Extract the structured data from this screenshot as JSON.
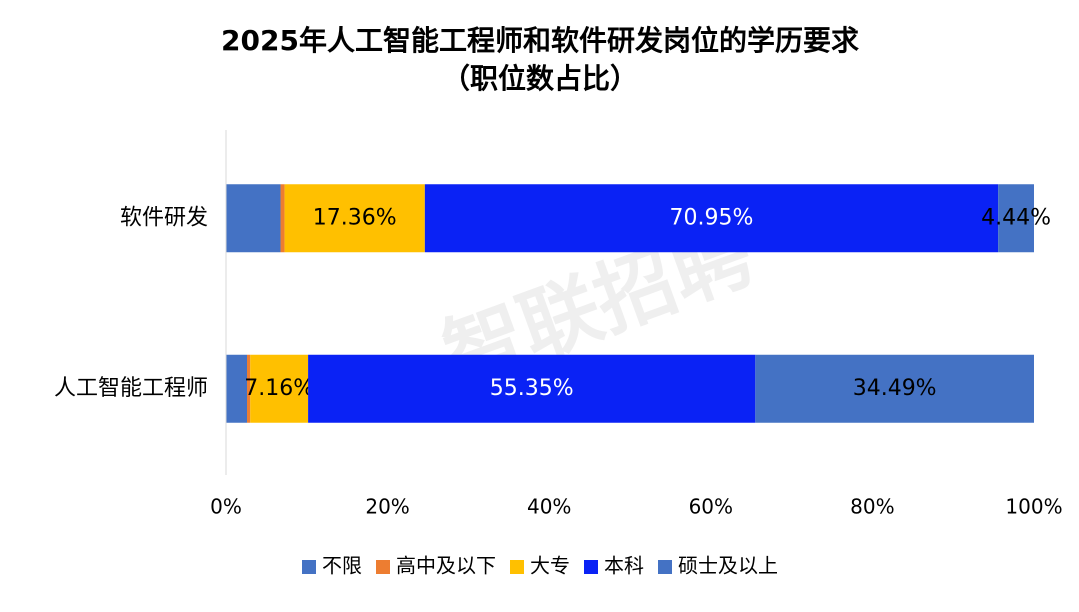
{
  "chart_data": {
    "type": "stacked-bar-horizontal",
    "title": "2025年人工智能工程师和软件研发岗位的学历要求",
    "subtitle": "（职位数占比）",
    "watermark": "智联招聘",
    "categories": [
      "软件研发",
      "人工智能工程师"
    ],
    "series": [
      {
        "name": "不限",
        "color": "#4472c4",
        "values": [
          6.75,
          2.6
        ],
        "value_labels": [
          null,
          null
        ]
      },
      {
        "name": "高中及以下",
        "color": "#ed7d31",
        "values": [
          0.5,
          0.4
        ],
        "value_labels": [
          null,
          null
        ]
      },
      {
        "name": "大专",
        "color": "#ffc000",
        "values": [
          17.36,
          7.16
        ],
        "value_labels": [
          "17.36%",
          "7.16%"
        ]
      },
      {
        "name": "本科",
        "color": "#0a22f5",
        "values": [
          70.95,
          55.35
        ],
        "value_labels": [
          "70.95%",
          "55.35%"
        ]
      },
      {
        "name": "硕士及以上",
        "color": "#4472c4",
        "values": [
          4.44,
          34.49
        ],
        "value_labels": [
          "4.44%",
          "34.49%"
        ]
      }
    ],
    "xlim": [
      0,
      100
    ],
    "xticks": [
      {
        "value": 0,
        "label": "0%"
      },
      {
        "value": 20,
        "label": "20%"
      },
      {
        "value": 40,
        "label": "40%"
      },
      {
        "value": 60,
        "label": "60%"
      },
      {
        "value": 80,
        "label": "80%"
      },
      {
        "value": 100,
        "label": "100%"
      }
    ],
    "legend": "bottom"
  }
}
